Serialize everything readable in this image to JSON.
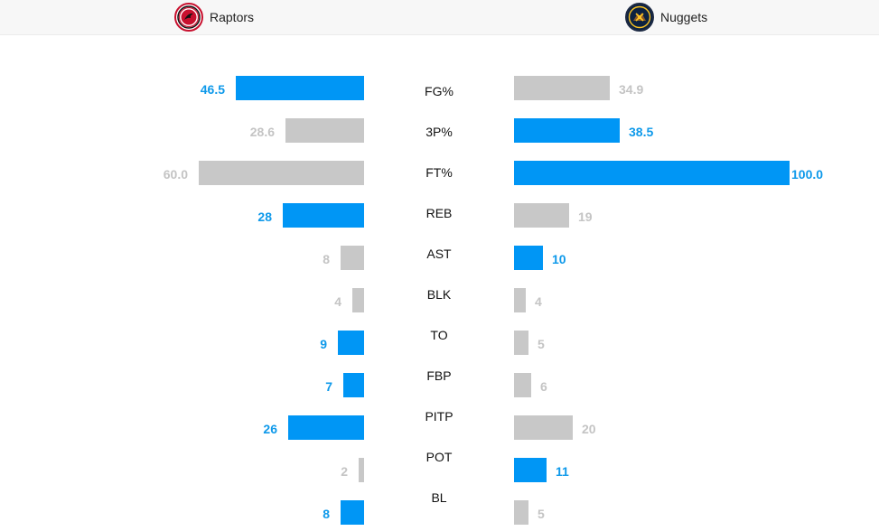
{
  "colors": {
    "leader": "#0096f5",
    "trailer": "#c8c8c8",
    "leader_text": "#0e99ea",
    "trailer_text": "#c4c4c4"
  },
  "teams": {
    "left": {
      "name": "Raptors",
      "logo_icon": "raptors-logo-icon"
    },
    "right": {
      "name": "Nuggets",
      "logo_icon": "nuggets-logo-icon"
    }
  },
  "stats": [
    {
      "label": "FG%",
      "left": "46.5",
      "right": "34.9",
      "left_num": 46.5,
      "right_num": 34.9,
      "leader": "left"
    },
    {
      "label": "3P%",
      "left": "28.6",
      "right": "38.5",
      "left_num": 28.6,
      "right_num": 38.5,
      "leader": "right"
    },
    {
      "label": "FT%",
      "left": "60.0",
      "right": "100.0",
      "left_num": 60.0,
      "right_num": 100.0,
      "leader": "right"
    },
    {
      "label": "REB",
      "left": "28",
      "right": "19",
      "left_num": 28,
      "right_num": 19,
      "leader": "left"
    },
    {
      "label": "AST",
      "left": "8",
      "right": "10",
      "left_num": 8,
      "right_num": 10,
      "leader": "right"
    },
    {
      "label": "BLK",
      "left": "4",
      "right": "4",
      "left_num": 4,
      "right_num": 4,
      "leader": "none"
    },
    {
      "label": "TO",
      "left": "9",
      "right": "5",
      "left_num": 9,
      "right_num": 5,
      "leader": "left"
    },
    {
      "label": "FBP",
      "left": "7",
      "right": "6",
      "left_num": 7,
      "right_num": 6,
      "leader": "left"
    },
    {
      "label": "PITP",
      "left": "26",
      "right": "20",
      "left_num": 26,
      "right_num": 20,
      "leader": "left"
    },
    {
      "label": "POT",
      "left": "2",
      "right": "11",
      "left_num": 2,
      "right_num": 11,
      "leader": "right"
    },
    {
      "label": "BL",
      "left": "8",
      "right": "5",
      "left_num": 8,
      "right_num": 5,
      "leader": "left"
    }
  ]
}
